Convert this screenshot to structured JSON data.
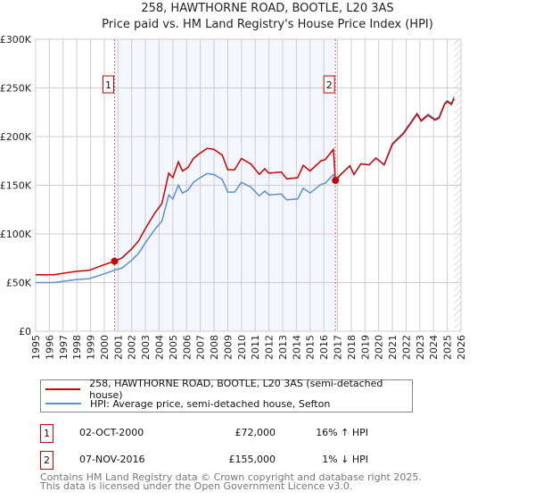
{
  "chart_data": {
    "type": "line",
    "title": "258, HAWTHORNE ROAD, BOOTLE, L20 3AS",
    "subtitle": "Price paid vs. HM Land Registry's House Price Index (HPI)",
    "xlim": [
      1995,
      2026
    ],
    "ylim": [
      0,
      300000
    ],
    "yticks": [
      {
        "v": 0,
        "label": "£0"
      },
      {
        "v": 50000,
        "label": "£50K"
      },
      {
        "v": 100000,
        "label": "£100K"
      },
      {
        "v": 150000,
        "label": "£150K"
      },
      {
        "v": 200000,
        "label": "£200K"
      },
      {
        "v": 250000,
        "label": "£250K"
      },
      {
        "v": 300000,
        "label": "£300K"
      }
    ],
    "xticks": [
      "1995",
      "1996",
      "1997",
      "1998",
      "1999",
      "2000",
      "2001",
      "2002",
      "2003",
      "2004",
      "2005",
      "2006",
      "2007",
      "2008",
      "2009",
      "2010",
      "2011",
      "2012",
      "2013",
      "2014",
      "2015",
      "2016",
      "2017",
      "2018",
      "2019",
      "2020",
      "2021",
      "2022",
      "2023",
      "2024",
      "2025",
      "2026"
    ],
    "grid": true,
    "shaded_range": [
      2000.75,
      2016.85
    ],
    "forecast_from": 2025.5,
    "series": [
      {
        "name": "258, HAWTHORNE ROAD, BOOTLE, L20 3AS (semi-detached house)",
        "color": "#cc0000",
        "points": [
          [
            1995,
            58000
          ],
          [
            1996.3,
            58000
          ],
          [
            1997.9,
            61500
          ],
          [
            1998.9,
            62600
          ],
          [
            2000,
            68400
          ],
          [
            2000.75,
            72000
          ],
          [
            2001.3,
            75400
          ],
          [
            2002,
            84700
          ],
          [
            2002.5,
            92800
          ],
          [
            2003,
            105600
          ],
          [
            2003.7,
            121800
          ],
          [
            2004.2,
            131100
          ],
          [
            2004.7,
            162400
          ],
          [
            2005,
            157800
          ],
          [
            2005.4,
            174000
          ],
          [
            2005.7,
            164700
          ],
          [
            2006.1,
            168200
          ],
          [
            2006.5,
            177500
          ],
          [
            2006.9,
            182100
          ],
          [
            2007.5,
            187900
          ],
          [
            2008,
            186800
          ],
          [
            2008.6,
            181000
          ],
          [
            2009,
            165900
          ],
          [
            2009.5,
            165900
          ],
          [
            2010,
            177500
          ],
          [
            2010.7,
            171700
          ],
          [
            2011.3,
            161200
          ],
          [
            2011.7,
            167000
          ],
          [
            2012,
            162400
          ],
          [
            2012.9,
            163600
          ],
          [
            2013.3,
            156600
          ],
          [
            2014.1,
            157800
          ],
          [
            2014.5,
            170500
          ],
          [
            2015,
            164700
          ],
          [
            2015.8,
            175200
          ],
          [
            2016.1,
            176300
          ],
          [
            2016.7,
            186800
          ],
          [
            2016.85,
            155000
          ],
          [
            2017.3,
            162000
          ],
          [
            2017.9,
            170000
          ],
          [
            2018.2,
            161000
          ],
          [
            2018.7,
            172000
          ],
          [
            2019.3,
            171000
          ],
          [
            2019.8,
            178000
          ],
          [
            2020.4,
            171000
          ],
          [
            2020.8,
            185000
          ],
          [
            2021,
            192000
          ],
          [
            2021.8,
            203000
          ],
          [
            2022.3,
            213000
          ],
          [
            2022.8,
            223000
          ],
          [
            2023.1,
            216000
          ],
          [
            2023.6,
            222000
          ],
          [
            2024.1,
            217000
          ],
          [
            2024.4,
            219000
          ],
          [
            2024.8,
            233000
          ],
          [
            2025,
            236000
          ],
          [
            2025.3,
            233000
          ],
          [
            2025.5,
            239000
          ]
        ]
      },
      {
        "name": "HPI: Average price, semi-detached house, Sefton",
        "color": "#5b8fd1",
        "points": [
          [
            1995,
            50000
          ],
          [
            1996.3,
            50000
          ],
          [
            1997.9,
            53000
          ],
          [
            1998.9,
            54000
          ],
          [
            2000,
            59000
          ],
          [
            2000.8,
            63000
          ],
          [
            2001.3,
            65000
          ],
          [
            2002,
            73000
          ],
          [
            2002.5,
            80000
          ],
          [
            2003,
            91000
          ],
          [
            2003.7,
            105000
          ],
          [
            2004.2,
            113000
          ],
          [
            2004.7,
            140000
          ],
          [
            2005,
            136000
          ],
          [
            2005.4,
            150000
          ],
          [
            2005.7,
            142000
          ],
          [
            2006.1,
            145000
          ],
          [
            2006.5,
            153000
          ],
          [
            2006.9,
            157000
          ],
          [
            2007.5,
            162000
          ],
          [
            2008,
            161000
          ],
          [
            2008.6,
            156000
          ],
          [
            2009,
            143000
          ],
          [
            2009.5,
            143000
          ],
          [
            2010,
            153000
          ],
          [
            2010.7,
            148000
          ],
          [
            2011.3,
            139000
          ],
          [
            2011.7,
            144000
          ],
          [
            2012,
            140000
          ],
          [
            2012.9,
            141000
          ],
          [
            2013.3,
            135000
          ],
          [
            2014.1,
            136000
          ],
          [
            2014.5,
            147000
          ],
          [
            2015,
            142000
          ],
          [
            2015.8,
            151000
          ],
          [
            2016.1,
            152000
          ],
          [
            2016.7,
            161000
          ],
          [
            2016.85,
            156000
          ],
          [
            2017.3,
            162000
          ],
          [
            2017.9,
            170000
          ],
          [
            2018.2,
            161000
          ],
          [
            2018.7,
            172000
          ],
          [
            2019.3,
            171000
          ],
          [
            2019.8,
            178000
          ],
          [
            2020.4,
            171000
          ],
          [
            2020.8,
            186000
          ],
          [
            2021,
            193000
          ],
          [
            2021.8,
            204000
          ],
          [
            2022.3,
            214000
          ],
          [
            2022.8,
            224000
          ],
          [
            2023.1,
            217000
          ],
          [
            2023.6,
            223000
          ],
          [
            2024.1,
            218000
          ],
          [
            2024.4,
            220000
          ],
          [
            2024.8,
            234000
          ],
          [
            2025,
            237000
          ],
          [
            2025.3,
            234000
          ],
          [
            2025.5,
            241000
          ]
        ]
      }
    ],
    "sales": [
      {
        "label": "1",
        "x": 2000.75,
        "y": 72000
      },
      {
        "label": "2",
        "x": 2016.85,
        "y": 155000
      }
    ]
  },
  "legend": {
    "property": "258, HAWTHORNE ROAD, BOOTLE, L20 3AS (semi-detached house)",
    "hpi": "HPI: Average price, semi-detached house, Sefton"
  },
  "sales_table": [
    {
      "num": "1",
      "date": "02-OCT-2000",
      "price": "£72,000",
      "hpi": "16% ↑ HPI"
    },
    {
      "num": "2",
      "date": "07-NOV-2016",
      "price": "£155,000",
      "hpi": "1% ↓ HPI"
    }
  ],
  "footer": {
    "line1": "Contains HM Land Registry data © Crown copyright and database right 2025.",
    "line2": "This data is licensed under the Open Government Licence v3.0."
  }
}
